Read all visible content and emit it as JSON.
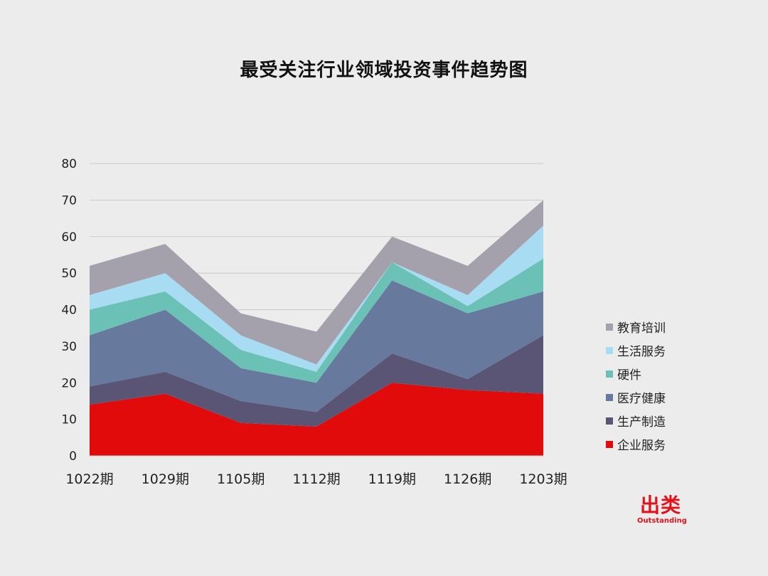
{
  "chart_data": {
    "type": "area",
    "stacked": true,
    "title": "最受关注行业领域投资事件趋势图",
    "categories": [
      "1022期",
      "1029期",
      "1105期",
      "1112期",
      "1119期",
      "1126期",
      "1203期"
    ],
    "ylim": [
      0,
      80
    ],
    "yticks": [
      0,
      10,
      20,
      30,
      40,
      50,
      60,
      70,
      80
    ],
    "grid": true,
    "legend_position": "right",
    "series": [
      {
        "name": "企业服务",
        "color": "#e20b0b",
        "values": [
          14,
          17,
          9,
          8,
          20,
          18,
          17
        ]
      },
      {
        "name": "生产制造",
        "color": "#5a5575",
        "values": [
          5,
          6,
          6,
          4,
          8,
          3,
          16
        ]
      },
      {
        "name": "医疗健康",
        "color": "#67799c",
        "values": [
          14,
          17,
          9,
          8,
          20,
          18,
          12
        ]
      },
      {
        "name": "硬件",
        "color": "#6cc1b6",
        "values": [
          7,
          5,
          5,
          3,
          5,
          2,
          9
        ]
      },
      {
        "name": "生活服务",
        "color": "#a8dcf2",
        "values": [
          4,
          5,
          4,
          2,
          0,
          3,
          9
        ]
      },
      {
        "name": "教育培训",
        "color": "#a4a1ad",
        "values": [
          8,
          8,
          6,
          9,
          7,
          8,
          7
        ]
      }
    ],
    "legend_order": [
      "教育培训",
      "生活服务",
      "硬件",
      "医疗健康",
      "生产制造",
      "企业服务"
    ]
  },
  "brand": {
    "mark": "出类",
    "sub": "Outstanding"
  }
}
